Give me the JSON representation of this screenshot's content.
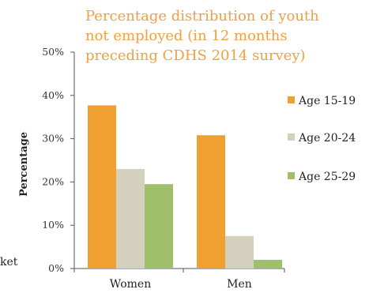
{
  "chart_data": {
    "type": "bar",
    "title_lines": [
      "Percentage distribution of youth",
      "not employed (in 12 months",
      "preceding CDHS 2014 survey)"
    ],
    "ylabel": "Percentage",
    "ylim": [
      0,
      50
    ],
    "yticks": [
      "0%",
      "10%",
      "20%",
      "30%",
      "40%",
      "50%"
    ],
    "categories": [
      "Women",
      "Men"
    ],
    "series": [
      {
        "name": "Age 15-19",
        "color": "#f0a030",
        "values": [
          37.7,
          30.8
        ]
      },
      {
        "name": "Age 20-24",
        "color": "#d3d1bd",
        "values": [
          23.0,
          7.5
        ]
      },
      {
        "name": "Age 25-29",
        "color": "#9fbf6a",
        "values": [
          19.5,
          2.0
        ]
      }
    ],
    "grid": false,
    "legend_position": "right"
  },
  "page": {
    "clipped_text": "ket"
  }
}
